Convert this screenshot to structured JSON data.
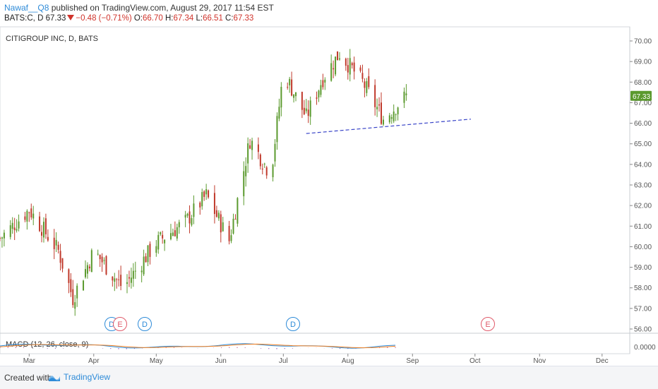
{
  "header": {
    "author": "Nawaf__Q8",
    "published": "published on TradingView.com, August 29, 2017 11:54 EST",
    "symbol": "BATS:C, D",
    "last": "67.33",
    "change": "−0.48 (−0.71%)",
    "o_label": "O:",
    "o_value": "66.70",
    "h_label": "H:",
    "h_value": "67.34",
    "l_label": "L:",
    "l_value": "66.51",
    "c_label": "C:",
    "c_value": "67.33"
  },
  "footer": {
    "created": "Created with",
    "brand": "TradingView"
  },
  "colors": {
    "up": "#5b9a2e",
    "down": "#c0392b",
    "trendline": "#3a45c8",
    "price_badge": "#5b9a2e",
    "macd": "#2e8bd8",
    "signal": "#f07f22"
  },
  "chart_data": {
    "type": "candlestick",
    "title": "CITIGROUP INC, D, BATS",
    "y_axis": {
      "min": 56.0,
      "max": 70.0,
      "ticks": [
        "70.00",
        "69.00",
        "68.00",
        "67.00",
        "66.00",
        "65.00",
        "64.00",
        "63.00",
        "62.00",
        "61.00",
        "60.00",
        "59.00",
        "58.00",
        "57.00",
        "56.00"
      ]
    },
    "x_axis": {
      "ticks": [
        "Mar",
        "Apr",
        "May",
        "Jun",
        "Jul",
        "Aug",
        "Sep",
        "Oct",
        "Nov",
        "Dec"
      ]
    },
    "last_price_badge": "67.33",
    "trendline": {
      "from": {
        "date": "2017-07-12",
        "price": 65.5
      },
      "to": {
        "date": "2017-09-29",
        "price": 66.2
      }
    },
    "events": [
      {
        "label": "D",
        "type": "dividend",
        "x_month": "Apr"
      },
      {
        "label": "E",
        "type": "earnings",
        "x_month": "Apr"
      },
      {
        "label": "D",
        "type": "dividend",
        "x_month": "May"
      },
      {
        "label": "D",
        "type": "dividend",
        "x_month": "Jul"
      },
      {
        "label": "E",
        "type": "earnings",
        "x_month": "Oct"
      }
    ],
    "series": [
      {
        "name": "price",
        "close_points": [
          {
            "date": "2017-02-15",
            "close": 60.4
          },
          {
            "date": "2017-03-01",
            "close": 61.8
          },
          {
            "date": "2017-03-15",
            "close": 59.8
          },
          {
            "date": "2017-03-22",
            "close": 57.5
          },
          {
            "date": "2017-04-01",
            "close": 59.8
          },
          {
            "date": "2017-04-15",
            "close": 58.0
          },
          {
            "date": "2017-05-01",
            "close": 60.2
          },
          {
            "date": "2017-05-15",
            "close": 61.2
          },
          {
            "date": "2017-05-25",
            "close": 62.5
          },
          {
            "date": "2017-06-05",
            "close": 60.3
          },
          {
            "date": "2017-06-15",
            "close": 65.2
          },
          {
            "date": "2017-06-25",
            "close": 63.5
          },
          {
            "date": "2017-07-01",
            "close": 68.5
          },
          {
            "date": "2017-07-12",
            "close": 66.3
          },
          {
            "date": "2017-07-20",
            "close": 68.2
          },
          {
            "date": "2017-07-28",
            "close": 69.4
          },
          {
            "date": "2017-08-08",
            "close": 68.0
          },
          {
            "date": "2017-08-18",
            "close": 66.2
          },
          {
            "date": "2017-08-29",
            "close": 67.33
          }
        ]
      }
    ],
    "macd": {
      "label": "MACD (12, 26, close, 9)",
      "y_tick": "0.0000"
    }
  }
}
